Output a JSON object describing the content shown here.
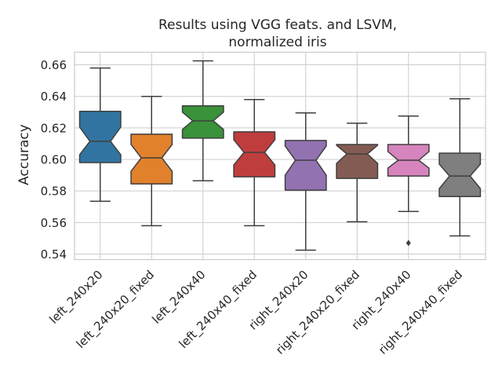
{
  "chart_data": {
    "type": "boxplot",
    "title": "Results using VGG feats. and LSVM,",
    "subtitle": "normalized iris",
    "xlabel": "",
    "ylabel": "Accuracy",
    "ylim": [
      0.5365,
      0.668
    ],
    "yticks": [
      0.54,
      0.56,
      0.58,
      0.6,
      0.62,
      0.64,
      0.66
    ],
    "ytick_labels": [
      "0.54",
      "0.56",
      "0.58",
      "0.60",
      "0.62",
      "0.64",
      "0.66"
    ],
    "grid": true,
    "notched": true,
    "categories": [
      "left_240x20",
      "left_240x20_fixed",
      "left_240x40",
      "left_240x40_fixed",
      "right_240x20",
      "right_240x20_fixed",
      "right_240x40",
      "right_240x40_fixed"
    ],
    "colors": [
      "#3274a1",
      "#e1812c",
      "#3a923a",
      "#c03d3e",
      "#9372b2",
      "#845b53",
      "#d684bd",
      "#7f7f7f"
    ],
    "boxes": [
      {
        "whislo": 0.5735,
        "q1": 0.598,
        "med": 0.6115,
        "q3": 0.6305,
        "whishi": 0.658,
        "notch_lo": 0.603,
        "notch_hi": 0.6205,
        "fliers": []
      },
      {
        "whislo": 0.558,
        "q1": 0.5845,
        "med": 0.601,
        "q3": 0.616,
        "whishi": 0.64,
        "notch_lo": 0.5925,
        "notch_hi": 0.6095,
        "fliers": []
      },
      {
        "whislo": 0.5865,
        "q1": 0.6135,
        "med": 0.6245,
        "q3": 0.634,
        "whishi": 0.6625,
        "notch_lo": 0.619,
        "notch_hi": 0.63,
        "fliers": []
      },
      {
        "whislo": 0.558,
        "q1": 0.589,
        "med": 0.6045,
        "q3": 0.6175,
        "whishi": 0.638,
        "notch_lo": 0.5965,
        "notch_hi": 0.6125,
        "fliers": []
      },
      {
        "whislo": 0.5425,
        "q1": 0.5805,
        "med": 0.5995,
        "q3": 0.612,
        "whishi": 0.6295,
        "notch_lo": 0.59,
        "notch_hi": 0.6085,
        "fliers": []
      },
      {
        "whislo": 0.5605,
        "q1": 0.588,
        "med": 0.6035,
        "q3": 0.6095,
        "whishi": 0.623,
        "notch_lo": 0.5975,
        "notch_hi": 0.609,
        "fliers": []
      },
      {
        "whislo": 0.567,
        "q1": 0.5895,
        "med": 0.5995,
        "q3": 0.6095,
        "whishi": 0.6275,
        "notch_lo": 0.5945,
        "notch_hi": 0.605,
        "fliers": [
          0.547
        ]
      },
      {
        "whislo": 0.5515,
        "q1": 0.5765,
        "med": 0.5895,
        "q3": 0.604,
        "whishi": 0.6385,
        "notch_lo": 0.5815,
        "notch_hi": 0.597,
        "fliers": []
      }
    ]
  }
}
